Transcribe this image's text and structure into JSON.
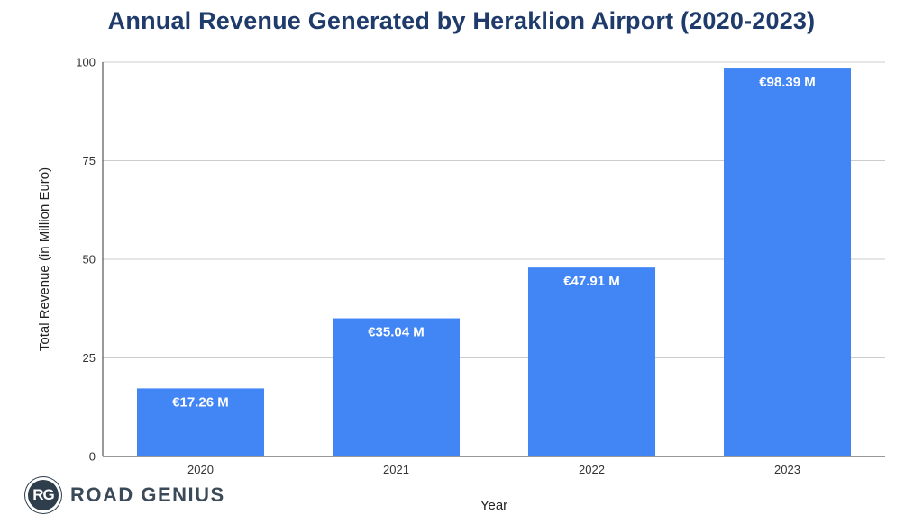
{
  "chart_data": {
    "type": "bar",
    "title": "Annual Revenue Generated by Heraklion Airport (2020-2023)",
    "xlabel": "Year",
    "ylabel": "Total Revenue (in Million Euro)",
    "categories": [
      "2020",
      "2021",
      "2022",
      "2023"
    ],
    "values": [
      17.26,
      35.04,
      47.91,
      98.39
    ],
    "data_labels": [
      "€17.26 M",
      "€35.04 M",
      "€47.91 M",
      "€98.39 M"
    ],
    "ylim": [
      0,
      100
    ],
    "yticks": [
      0,
      25,
      50,
      75,
      100
    ],
    "grid": true,
    "bar_color": "#4285f4"
  },
  "logo": {
    "badge": "RG",
    "text": "ROAD GENIUS"
  }
}
